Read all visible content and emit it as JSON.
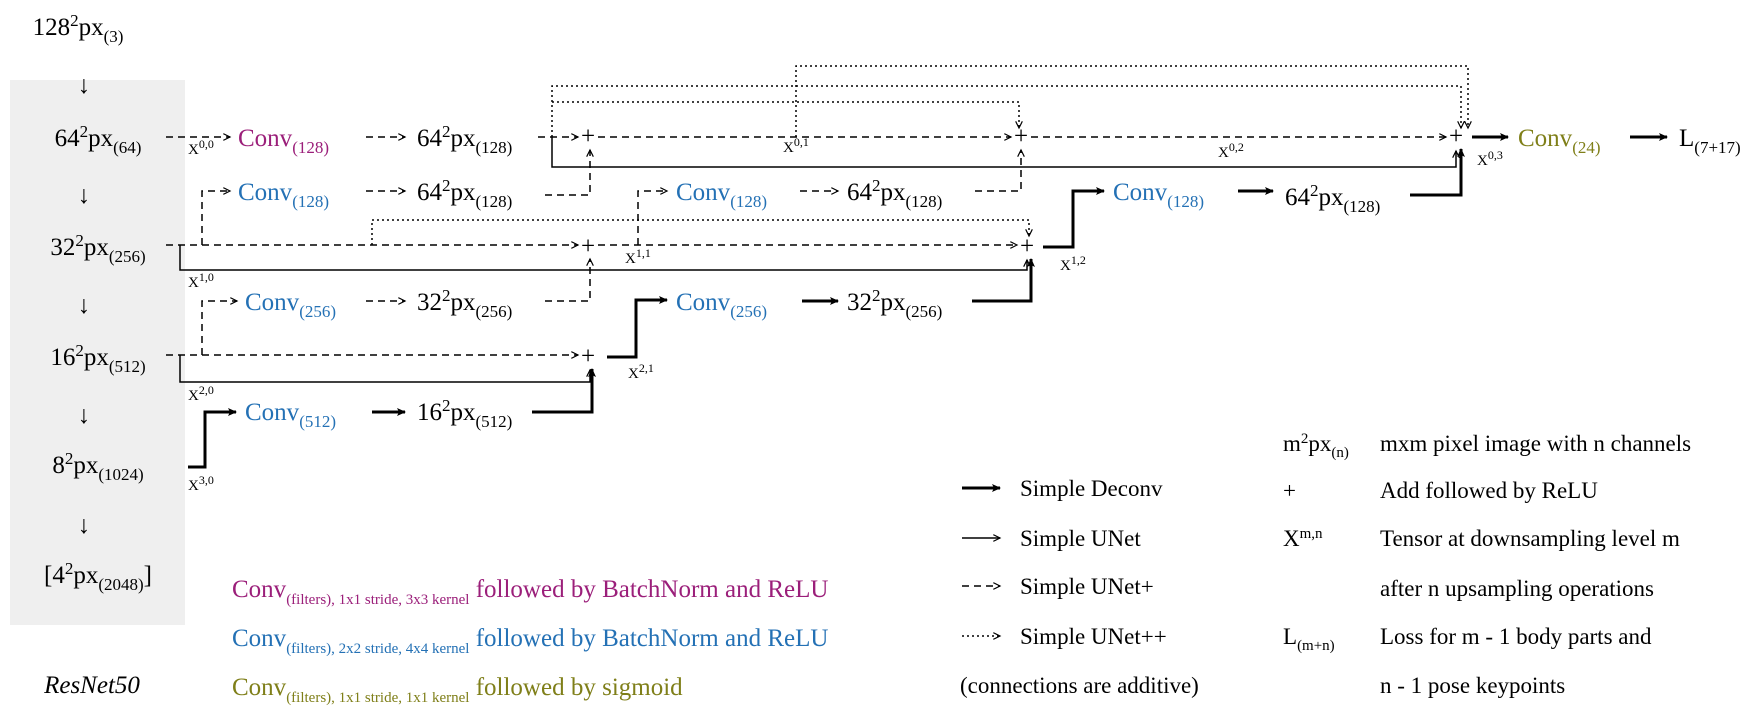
{
  "colors": {
    "purple": "#9b1f7a",
    "blue": "#2471b5",
    "olive": "#7f7f19",
    "panel": "#efefef"
  },
  "resnet": {
    "input": {
      "base": "128",
      "sup": "2",
      "px": "px",
      "sub": "(3)"
    },
    "levels": [
      {
        "base": "64",
        "sup": "2",
        "px": "px",
        "sub": "(64)"
      },
      {
        "base": "32",
        "sup": "2",
        "px": "px",
        "sub": "(256)"
      },
      {
        "base": "16",
        "sup": "2",
        "px": "px",
        "sub": "(512)"
      },
      {
        "base": "8",
        "sup": "2",
        "px": "px",
        "sub": "(1024)"
      },
      {
        "base": "[4",
        "sup": "2",
        "px": "px",
        "sub": "(2048)",
        "end": "]"
      }
    ],
    "arrow": "↓",
    "label": "ResNet50"
  },
  "convs": [
    {
      "text": "Conv",
      "sub": "(128)",
      "kind": "purple"
    },
    {
      "text": "Conv",
      "sub": "(128)",
      "kind": "blue"
    },
    {
      "text": "Conv",
      "sub": "(128)",
      "kind": "blue"
    },
    {
      "text": "Conv",
      "sub": "(128)",
      "kind": "blue"
    },
    {
      "text": "Conv",
      "sub": "(256)",
      "kind": "blue"
    },
    {
      "text": "Conv",
      "sub": "(256)",
      "kind": "blue"
    },
    {
      "text": "Conv",
      "sub": "(512)",
      "kind": "blue"
    },
    {
      "text": "Conv",
      "sub": "(24)",
      "kind": "olive"
    }
  ],
  "feature_maps": [
    {
      "base": "64",
      "sup": "2",
      "px": "px",
      "sub": "(128)"
    },
    {
      "base": "64",
      "sup": "2",
      "px": "px",
      "sub": "(128)"
    },
    {
      "base": "64",
      "sup": "2",
      "px": "px",
      "sub": "(128)"
    },
    {
      "base": "64",
      "sup": "2",
      "px": "px",
      "sub": "(128)"
    },
    {
      "base": "32",
      "sup": "2",
      "px": "px",
      "sub": "(256)"
    },
    {
      "base": "32",
      "sup": "2",
      "px": "px",
      "sub": "(256)"
    },
    {
      "base": "16",
      "sup": "2",
      "px": "px",
      "sub": "(512)"
    }
  ],
  "tensors": [
    {
      "base": "X",
      "sup": "0,0"
    },
    {
      "base": "X",
      "sup": "1,0"
    },
    {
      "base": "X",
      "sup": "2,0"
    },
    {
      "base": "X",
      "sup": "3,0"
    },
    {
      "base": "X",
      "sup": "0,1"
    },
    {
      "base": "X",
      "sup": "0,2"
    },
    {
      "base": "X",
      "sup": "0,3"
    },
    {
      "base": "X",
      "sup": "1,1"
    },
    {
      "base": "X",
      "sup": "1,2"
    },
    {
      "base": "X",
      "sup": "2,1"
    }
  ],
  "plus_symbol": "+",
  "loss": {
    "base": "L",
    "sub": "(7+17)"
  },
  "conv_legend": [
    {
      "conv": "Conv",
      "sub": "(filters), 1x1 stride,  3x3 kernel",
      "desc": " followed by BatchNorm and ReLU",
      "kind": "purple"
    },
    {
      "conv": "Conv",
      "sub": "(filters), 2x2 stride, 4x4 kernel",
      "desc": " followed by BatchNorm and ReLU",
      "kind": "blue"
    },
    {
      "conv": "Conv",
      "sub": "(filters), 1x1 stride, 1x1 kernel",
      "desc": " followed by sigmoid",
      "kind": "olive"
    }
  ],
  "arrow_legend": {
    "items": [
      {
        "label": "Simple Deconv",
        "style": "thick"
      },
      {
        "label": "Simple UNet",
        "style": "thin"
      },
      {
        "label": "Simple UNet+",
        "style": "dashed"
      },
      {
        "label": "Simple UNet++",
        "style": "dotted"
      }
    ],
    "note": "(connections are additive)"
  },
  "symbol_legend": [
    {
      "sym_base": "m",
      "sym_sup": "2",
      "sym_mid": "px",
      "sym_sub": "(n)",
      "desc": "mxm pixel image with n channels"
    },
    {
      "sym_base": "+",
      "desc": "Add followed by ReLU"
    },
    {
      "sym_base": "X",
      "sym_sup": "m,n",
      "desc": "Tensor at downsampling level m"
    },
    {
      "desc": "after n upsampling operations"
    },
    {
      "sym_base": "L",
      "sym_sub": "(m+n)",
      "desc": "Loss for m - 1 body parts and"
    },
    {
      "desc": "n - 1 pose keypoints"
    }
  ]
}
